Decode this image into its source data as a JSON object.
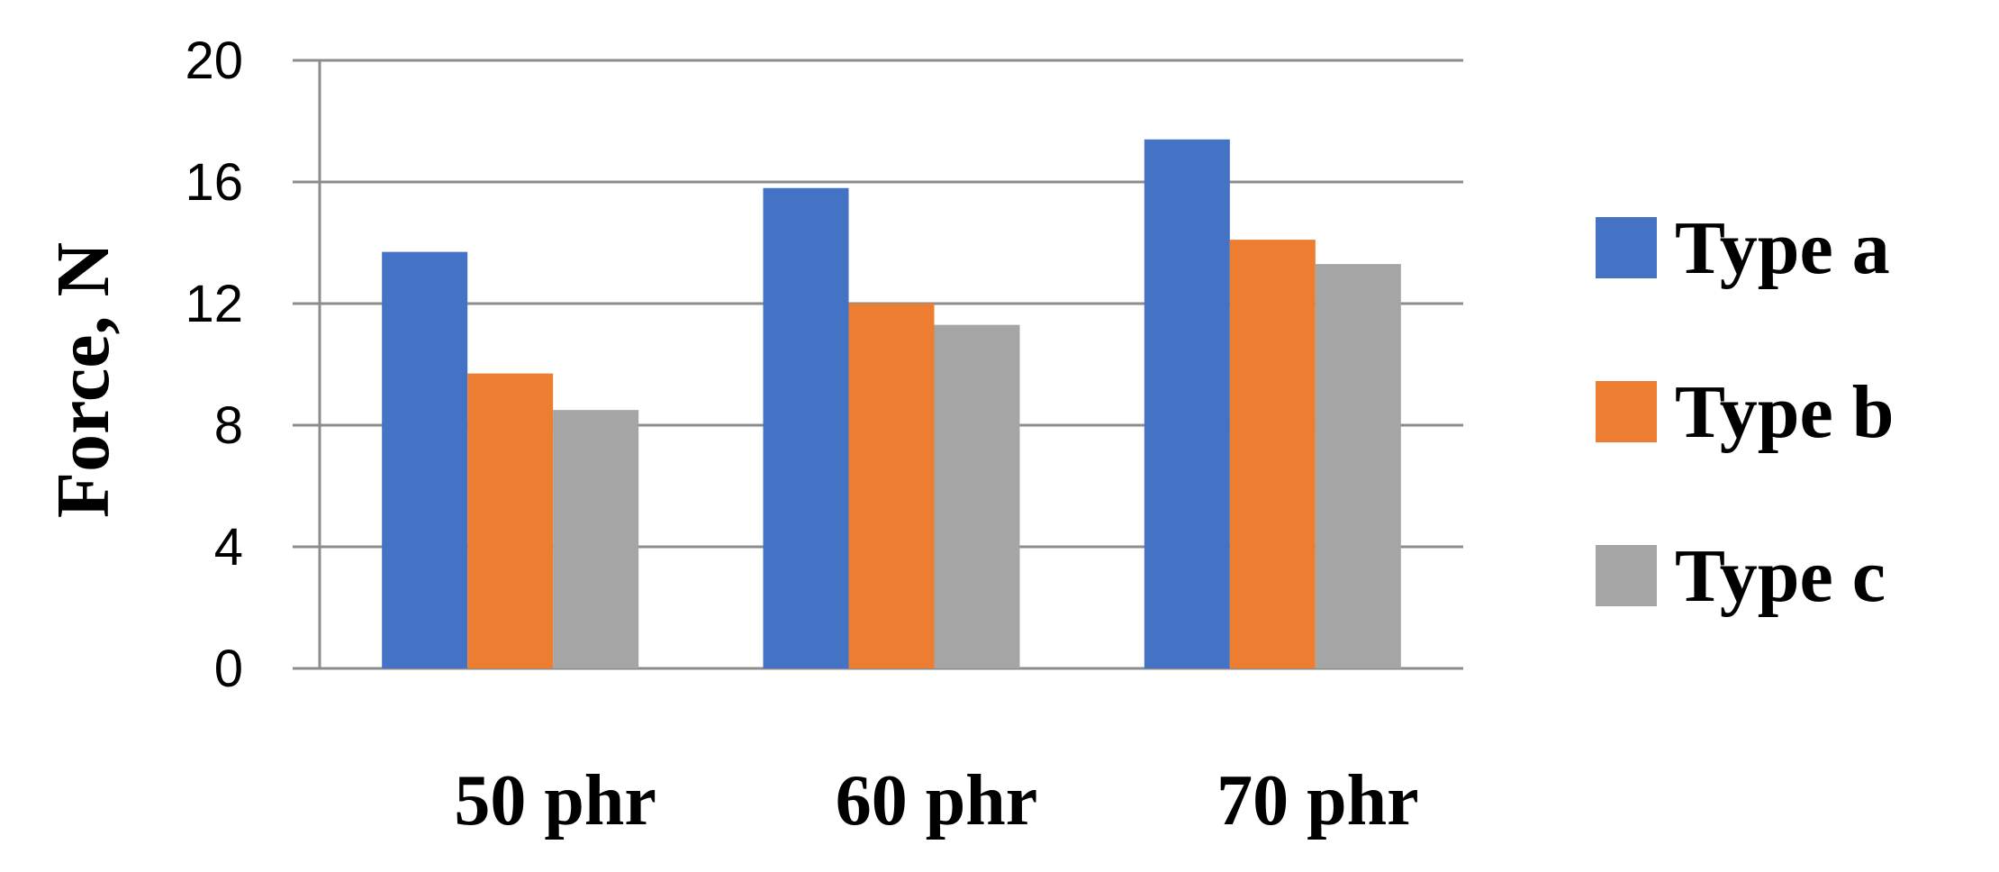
{
  "chart_data": {
    "type": "bar",
    "title": "",
    "xlabel": "",
    "ylabel": "Force, N",
    "ylim": [
      0,
      20
    ],
    "yticks": [
      0,
      4,
      8,
      12,
      16,
      20
    ],
    "grid": true,
    "legend_position": "right",
    "categories": [
      "50 phr",
      "60 phr",
      "70 phr"
    ],
    "series": [
      {
        "name": "Type a",
        "color": "#4472C4",
        "values": [
          13.7,
          15.8,
          17.4
        ]
      },
      {
        "name": "Type b",
        "color": "#ED7D31",
        "values": [
          9.7,
          12.0,
          14.1
        ]
      },
      {
        "name": "Type c",
        "color": "#A5A5A5",
        "values": [
          8.5,
          11.3,
          13.3
        ]
      }
    ]
  }
}
